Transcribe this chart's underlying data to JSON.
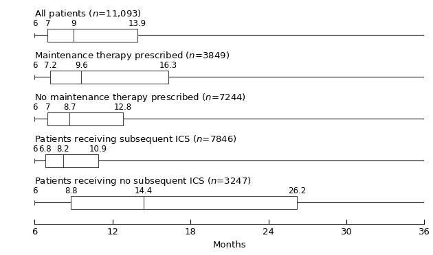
{
  "rows": [
    {
      "label": "All patients",
      "n_text": "n=11,093",
      "min": 6,
      "q1": 7,
      "median": 9,
      "q3": 13.9,
      "max": 36,
      "tick_labels": [
        "6",
        "7",
        "9",
        "13.9"
      ]
    },
    {
      "label": "Maintenance therapy prescribed",
      "n_text": "n=3849",
      "min": 6,
      "q1": 7.2,
      "median": 9.6,
      "q3": 16.3,
      "max": 36,
      "tick_labels": [
        "6",
        "7.2",
        "9.6",
        "16.3"
      ]
    },
    {
      "label": "No maintenance therapy prescribed",
      "n_text": "n=7244",
      "min": 6,
      "q1": 7,
      "median": 8.7,
      "q3": 12.8,
      "max": 36,
      "tick_labels": [
        "6",
        "7",
        "8.7",
        "12.8"
      ]
    },
    {
      "label": "Patients receiving subsequent ICS",
      "n_text": "n=7846",
      "min": 6,
      "q1": 6.8,
      "median": 8.2,
      "q3": 10.9,
      "max": 36,
      "tick_labels": [
        "6",
        "6.8",
        "8.2",
        "10.9"
      ]
    },
    {
      "label": "Patients receiving no subsequent ICS",
      "n_text": "n=3247",
      "min": 6,
      "q1": 8.8,
      "median": 14.4,
      "q3": 26.2,
      "max": 36,
      "tick_labels": [
        "6",
        "8.8",
        "14.4",
        "26.2"
      ]
    }
  ],
  "xmin": 6,
  "xmax": 36,
  "xticks": [
    6,
    12,
    18,
    24,
    30,
    36
  ],
  "xlabel": "Months",
  "box_color": "white",
  "edge_color": "#444444",
  "line_color": "#444444",
  "label_fontsize": 9.5,
  "tick_fontsize": 8.5,
  "axis_fontsize": 9.5
}
